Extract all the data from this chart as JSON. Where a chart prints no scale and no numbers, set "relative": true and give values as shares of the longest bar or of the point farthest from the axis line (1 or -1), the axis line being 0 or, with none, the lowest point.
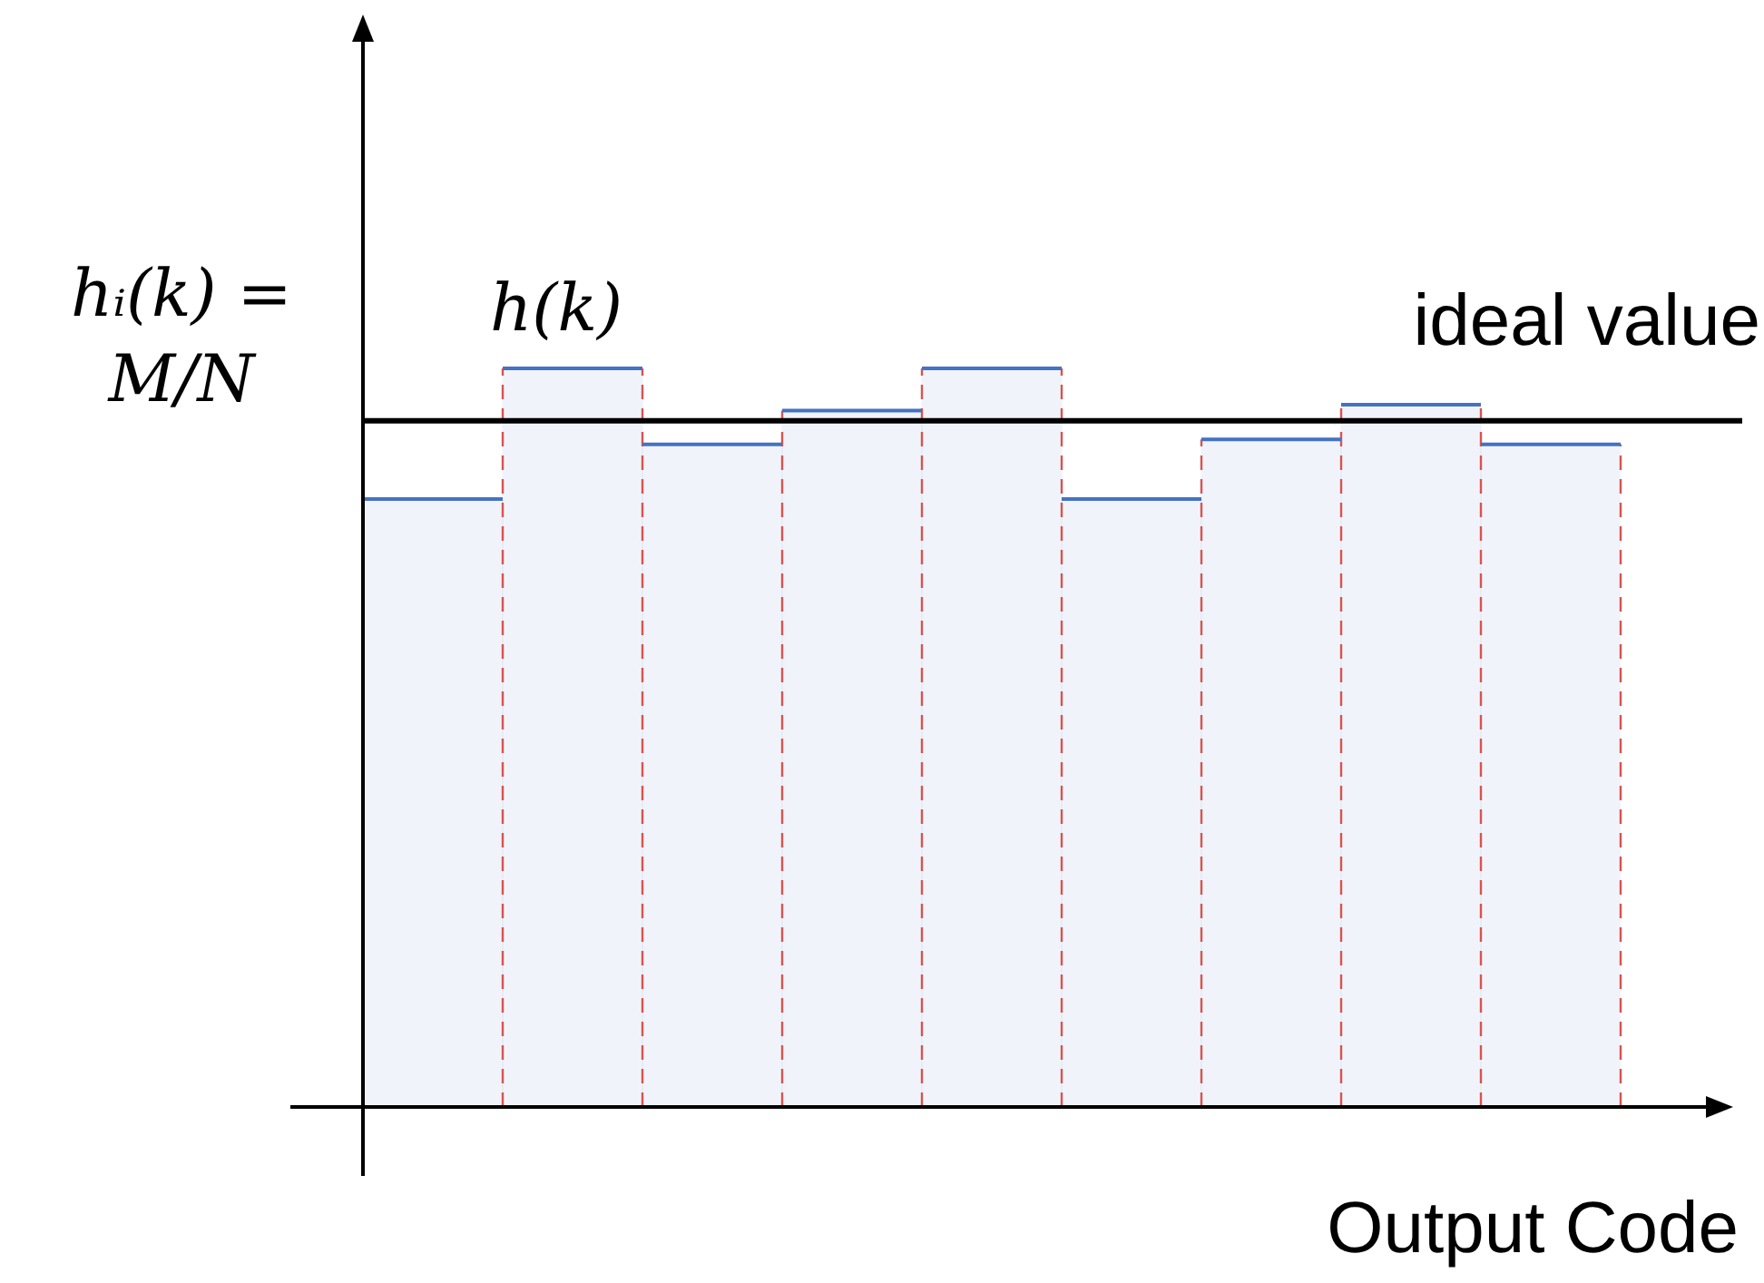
{
  "chart_data": {
    "type": "bar",
    "relative": true,
    "ylabel": "hᵢ(k) = M/N",
    "xlabel": "Output Code",
    "categories": [
      null,
      null,
      null,
      null,
      null,
      null,
      null,
      null,
      null
    ],
    "series": [
      {
        "color": "#4472c4",
        "values": [
          0.823,
          1,
          0.897,
          0.943,
          1,
          0.823,
          0.904,
          0.951,
          0.897
        ]
      }
    ],
    "ref_lines": [
      {
        "axis": "y",
        "value": 0.929,
        "label": "ideal value",
        "color": "#000000"
      }
    ],
    "annotations": [
      "h(k)"
    ],
    "legend": false
  }
}
